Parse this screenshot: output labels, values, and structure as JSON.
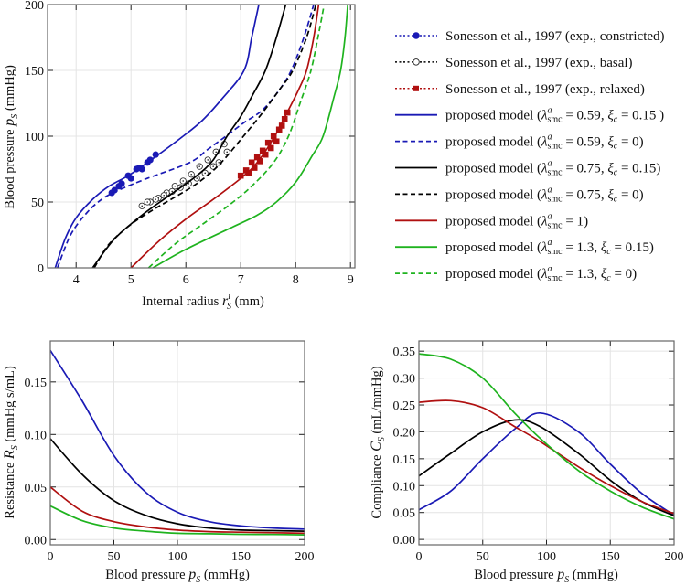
{
  "colors": {
    "blue": "#1a1ab5",
    "black": "#000000",
    "red": "#b01010",
    "green": "#1fb31f",
    "grid": "#e4e4e4",
    "frame": "#666666"
  },
  "chart_data": [
    {
      "type": "line",
      "title": "",
      "xlabel": {
        "pre": "Internal radius ",
        "var": "r",
        "sup": "i",
        "sub": "S",
        "post": " (mm)"
      },
      "ylabel": {
        "pre": "Blood pressure ",
        "var": "p",
        "sup": "",
        "sub": "S",
        "post": " (mmHg)"
      },
      "xlim": [
        3.48,
        9.08
      ],
      "ylim": [
        0,
        200
      ],
      "xticks": [
        "4",
        "5",
        "6",
        "7",
        "8",
        "9"
      ],
      "yticks": [
        "0",
        "50",
        "100",
        "150",
        "200"
      ],
      "grid": true,
      "legend_position": "right-outside",
      "series": [
        {
          "name": "Sonesson et al., 1997 (exp., constricted)",
          "color": "blue",
          "style": "markers-filled-circle",
          "points": [
            [
              4.65,
              57
            ],
            [
              4.7,
              59
            ],
            [
              4.78,
              62
            ],
            [
              4.83,
              64
            ],
            [
              4.95,
              70
            ],
            [
              5.0,
              68
            ],
            [
              5.1,
              75
            ],
            [
              5.15,
              76
            ],
            [
              5.2,
              75
            ],
            [
              5.3,
              80
            ],
            [
              5.35,
              82
            ],
            [
              5.45,
              86
            ]
          ]
        },
        {
          "name": "Sonesson et al., 1997 (exp., basal)",
          "color": "black",
          "style": "markers-open-circle",
          "points": [
            [
              5.2,
              47
            ],
            [
              5.35,
              50
            ],
            [
              5.5,
              53
            ],
            [
              5.65,
              57
            ],
            [
              5.8,
              62
            ],
            [
              5.95,
              66
            ],
            [
              6.1,
              71
            ],
            [
              6.25,
              77
            ],
            [
              6.4,
              82
            ],
            [
              6.55,
              88
            ],
            [
              6.7,
              94
            ],
            [
              5.3,
              50
            ],
            [
              5.45,
              52
            ],
            [
              5.6,
              55
            ],
            [
              5.75,
              58
            ],
            [
              5.9,
              61
            ],
            [
              6.05,
              64
            ],
            [
              6.2,
              68
            ],
            [
              6.35,
              72
            ],
            [
              6.5,
              77
            ],
            [
              6.6,
              80
            ],
            [
              6.75,
              88
            ]
          ]
        },
        {
          "name": "Sonesson et al., 1997 (exp., relaxed)",
          "color": "red",
          "style": "markers-filled-square",
          "points": [
            [
              7.0,
              70
            ],
            [
              7.1,
              74
            ],
            [
              7.15,
              72
            ],
            [
              7.2,
              80
            ],
            [
              7.25,
              76
            ],
            [
              7.3,
              84
            ],
            [
              7.35,
              81
            ],
            [
              7.4,
              89
            ],
            [
              7.45,
              86
            ],
            [
              7.5,
              95
            ],
            [
              7.55,
              91
            ],
            [
              7.6,
              100
            ],
            [
              7.65,
              96
            ],
            [
              7.7,
              105
            ],
            [
              7.75,
              108
            ],
            [
              7.8,
              113
            ],
            [
              7.85,
              118
            ]
          ]
        },
        {
          "name": "proposed model",
          "lambda": "0.59",
          "xi": "0.15 ",
          "color": "blue",
          "style": "solid",
          "points": [
            [
              3.62,
              0
            ],
            [
              3.8,
              22
            ],
            [
              4.0,
              38
            ],
            [
              4.3,
              52
            ],
            [
              4.6,
              62
            ],
            [
              4.95,
              70
            ],
            [
              5.4,
              83
            ],
            [
              5.95,
              100
            ],
            [
              6.3,
              112
            ],
            [
              6.65,
              128
            ],
            [
              7.06,
              150
            ],
            [
              7.2,
              175
            ],
            [
              7.33,
              200
            ]
          ]
        },
        {
          "name": "proposed model",
          "lambda": "0.59",
          "xi": "0",
          "color": "blue",
          "style": "dashed",
          "points": [
            [
              3.66,
              0
            ],
            [
              3.9,
              25
            ],
            [
              4.2,
              42
            ],
            [
              4.5,
              53
            ],
            [
              4.83,
              60
            ],
            [
              5.3,
              68
            ],
            [
              6.07,
              80
            ],
            [
              6.4,
              90
            ],
            [
              6.73,
              100
            ],
            [
              7.05,
              110
            ],
            [
              7.4,
              120
            ],
            [
              7.7,
              135
            ],
            [
              7.92,
              150
            ],
            [
              8.15,
              175
            ],
            [
              8.33,
              200
            ]
          ]
        },
        {
          "name": "proposed model",
          "lambda": "0.75",
          "xi": "0.15",
          "color": "black",
          "style": "solid",
          "points": [
            [
              4.3,
              0
            ],
            [
              4.7,
              22
            ],
            [
              5.2,
              40
            ],
            [
              5.7,
              55
            ],
            [
              6.2,
              70
            ],
            [
              6.5,
              82
            ],
            [
              6.75,
              100
            ],
            [
              7.0,
              115
            ],
            [
              7.2,
              130
            ],
            [
              7.45,
              150
            ],
            [
              7.65,
              175
            ],
            [
              7.82,
              200
            ]
          ]
        },
        {
          "name": "proposed model",
          "lambda": "0.75",
          "xi": "0",
          "color": "black",
          "style": "dashed",
          "points": [
            [
              4.33,
              0
            ],
            [
              4.6,
              18
            ],
            [
              5.0,
              33
            ],
            [
              5.4,
              44
            ],
            [
              5.73,
              52
            ],
            [
              6.2,
              64
            ],
            [
              6.6,
              78
            ],
            [
              7.05,
              100
            ],
            [
              7.4,
              118
            ],
            [
              7.7,
              135
            ],
            [
              7.95,
              150
            ],
            [
              8.2,
              175
            ],
            [
              8.37,
              200
            ]
          ]
        },
        {
          "name": "proposed model",
          "lambda": "1",
          "color": "red",
          "style": "solid",
          "points": [
            [
              5.0,
              0
            ],
            [
              5.5,
              20
            ],
            [
              6.0,
              37
            ],
            [
              6.5,
              52
            ],
            [
              7.0,
              68
            ],
            [
              7.3,
              80
            ],
            [
              7.62,
              100
            ],
            [
              7.87,
              120
            ],
            [
              8.05,
              135
            ],
            [
              8.2,
              150
            ],
            [
              8.33,
              175
            ],
            [
              8.42,
              200
            ]
          ]
        },
        {
          "name": "proposed model",
          "lambda": "1.3",
          "xi": "0.15",
          "color": "green",
          "style": "solid",
          "points": [
            [
              5.4,
              0
            ],
            [
              6.0,
              14
            ],
            [
              6.8,
              30
            ],
            [
              7.3,
              40
            ],
            [
              7.65,
              50
            ],
            [
              8.0,
              65
            ],
            [
              8.3,
              85
            ],
            [
              8.5,
              100
            ],
            [
              8.7,
              130
            ],
            [
              8.82,
              150
            ],
            [
              8.9,
              175
            ],
            [
              8.95,
              200
            ]
          ]
        },
        {
          "name": "proposed model",
          "lambda": "1.3",
          "xi": "0",
          "color": "green",
          "style": "dashed",
          "points": [
            [
              5.32,
              0
            ],
            [
              5.8,
              18
            ],
            [
              6.3,
              33
            ],
            [
              6.8,
              48
            ],
            [
              7.2,
              62
            ],
            [
              7.6,
              80
            ],
            [
              7.87,
              100
            ],
            [
              8.08,
              125
            ],
            [
              8.28,
              150
            ],
            [
              8.43,
              180
            ],
            [
              8.52,
              200
            ]
          ]
        }
      ]
    },
    {
      "type": "line",
      "xlabel": {
        "pre": "Blood pressure ",
        "var": "p",
        "sup": "",
        "sub": "S",
        "post": " (mmHg)"
      },
      "ylabel": {
        "pre": "Resistance ",
        "var": "R",
        "sup": "",
        "sub": "S",
        "post": " (mmHg s/mL)"
      },
      "xlim": [
        0,
        200
      ],
      "ylim": [
        -0.005,
        0.189
      ],
      "xticks": [
        "0",
        "50",
        "100",
        "150",
        "200"
      ],
      "yticks": [
        "0.00",
        "0.05",
        "0.10",
        "0.15"
      ],
      "grid": true,
      "x": [
        0,
        25,
        50,
        75,
        100,
        125,
        150,
        175,
        200
      ],
      "series": [
        {
          "color": "blue",
          "values": [
            0.18,
            0.132,
            0.08,
            0.045,
            0.026,
            0.017,
            0.013,
            0.011,
            0.01
          ]
        },
        {
          "color": "black",
          "values": [
            0.096,
            0.062,
            0.037,
            0.023,
            0.015,
            0.011,
            0.009,
            0.0085,
            0.008
          ]
        },
        {
          "color": "red",
          "values": [
            0.05,
            0.027,
            0.017,
            0.012,
            0.009,
            0.0075,
            0.007,
            0.0065,
            0.006
          ]
        },
        {
          "color": "green",
          "values": [
            0.032,
            0.018,
            0.011,
            0.008,
            0.006,
            0.0055,
            0.005,
            0.0048,
            0.0045
          ]
        }
      ]
    },
    {
      "type": "line",
      "xlabel": {
        "pre": "Blood pressure ",
        "var": "p",
        "sup": "",
        "sub": "S",
        "post": " (mmHg)"
      },
      "ylabel": {
        "pre": "Compliance ",
        "var": "C",
        "sup": "",
        "sub": "S",
        "post": " (mL/mmHg)"
      },
      "xlim": [
        0,
        200
      ],
      "ylim": [
        -0.01,
        0.369
      ],
      "xticks": [
        "0",
        "50",
        "100",
        "150",
        "200"
      ],
      "yticks": [
        "0.00",
        "0.05",
        "0.10",
        "0.15",
        "0.20",
        "0.25",
        "0.30",
        "0.35"
      ],
      "grid": true,
      "x": [
        0,
        25,
        50,
        75,
        95,
        125,
        150,
        175,
        200
      ],
      "series": [
        {
          "color": "blue",
          "values": [
            0.055,
            0.09,
            0.15,
            0.205,
            0.235,
            0.2,
            0.14,
            0.085,
            0.045
          ]
        },
        {
          "color": "black",
          "values": [
            0.118,
            0.16,
            0.2,
            0.222,
            0.21,
            0.16,
            0.11,
            0.07,
            0.044
          ]
        },
        {
          "color": "red",
          "values": [
            0.255,
            0.258,
            0.245,
            0.21,
            0.182,
            0.135,
            0.1,
            0.07,
            0.048
          ]
        },
        {
          "color": "green",
          "values": [
            0.345,
            0.335,
            0.3,
            0.235,
            0.188,
            0.128,
            0.09,
            0.06,
            0.038
          ]
        }
      ]
    }
  ],
  "legend_symbols": {
    "lambda": "λ",
    "lambda_sup": "a",
    "lambda_sub": "smc",
    "xi": "ξ",
    "xi_sub": "c"
  }
}
